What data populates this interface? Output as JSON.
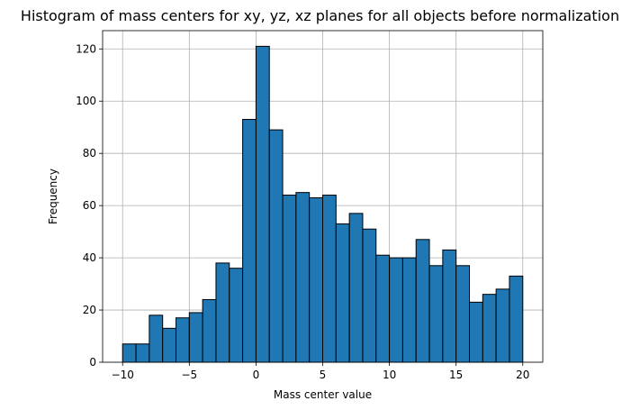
{
  "chart_data": {
    "type": "bar",
    "title": "Histogram of mass centers for xy, yz, xz planes for all objects before normalization",
    "xlabel": "Mass center value",
    "ylabel": "Frequency",
    "xlim": [
      -11.5,
      21.5
    ],
    "ylim": [
      0,
      127
    ],
    "grid": true,
    "bar_color": "#1f77b4",
    "edge_color": "#000000",
    "x_ticks": [
      -10,
      -5,
      0,
      5,
      10,
      15,
      20
    ],
    "x_tick_labels": [
      "−10",
      "−5",
      "0",
      "5",
      "10",
      "15",
      "20"
    ],
    "y_ticks": [
      0,
      20,
      40,
      60,
      80,
      100,
      120
    ],
    "y_tick_labels": [
      "0",
      "20",
      "40",
      "60",
      "80",
      "100",
      "120"
    ],
    "bin_edges": [
      -10,
      -9,
      -8,
      -7,
      -6,
      -5,
      -4,
      -3,
      -2,
      -1,
      0,
      1,
      2,
      3,
      4,
      5,
      6,
      7,
      8,
      9,
      10,
      11,
      12,
      13,
      14,
      15,
      16,
      17,
      18,
      19,
      20
    ],
    "values": [
      7,
      7,
      18,
      13,
      17,
      19,
      24,
      38,
      36,
      93,
      121,
      89,
      64,
      65,
      63,
      64,
      53,
      57,
      51,
      41,
      40,
      40,
      47,
      37,
      43,
      37,
      23,
      26,
      28,
      33
    ]
  }
}
